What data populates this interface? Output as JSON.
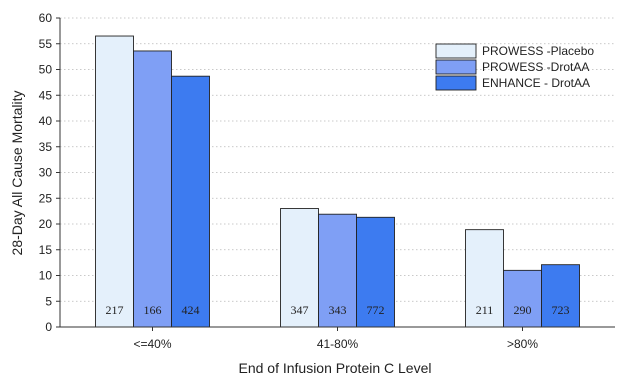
{
  "chart_data": {
    "type": "bar",
    "title": "",
    "xlabel": "End of Infusion Protein C Level",
    "ylabel": "28-Day All Cause Mortality",
    "ylim": [
      0,
      60
    ],
    "yticks": [
      0,
      5,
      10,
      15,
      20,
      25,
      30,
      35,
      40,
      45,
      50,
      55,
      60
    ],
    "grid": "horizontal-dotted",
    "legend_position": "top-right",
    "categories": [
      "<=40%",
      "41-80%",
      ">80%"
    ],
    "series": [
      {
        "name": "PROWESS -Placebo",
        "color": "#e4f0fb",
        "values": [
          56.5,
          23.0,
          18.9
        ],
        "counts": [
          "217",
          "347",
          "211"
        ]
      },
      {
        "name": "PROWESS -DrotAA",
        "color": "#7f9ff5",
        "values": [
          53.6,
          21.9,
          11.0
        ],
        "counts": [
          "166",
          "343",
          "290"
        ]
      },
      {
        "name": "ENHANCE - DrotAA",
        "color": "#3d7bf0",
        "values": [
          48.7,
          21.3,
          12.1
        ],
        "counts": [
          "424",
          "772",
          "723"
        ]
      }
    ]
  }
}
